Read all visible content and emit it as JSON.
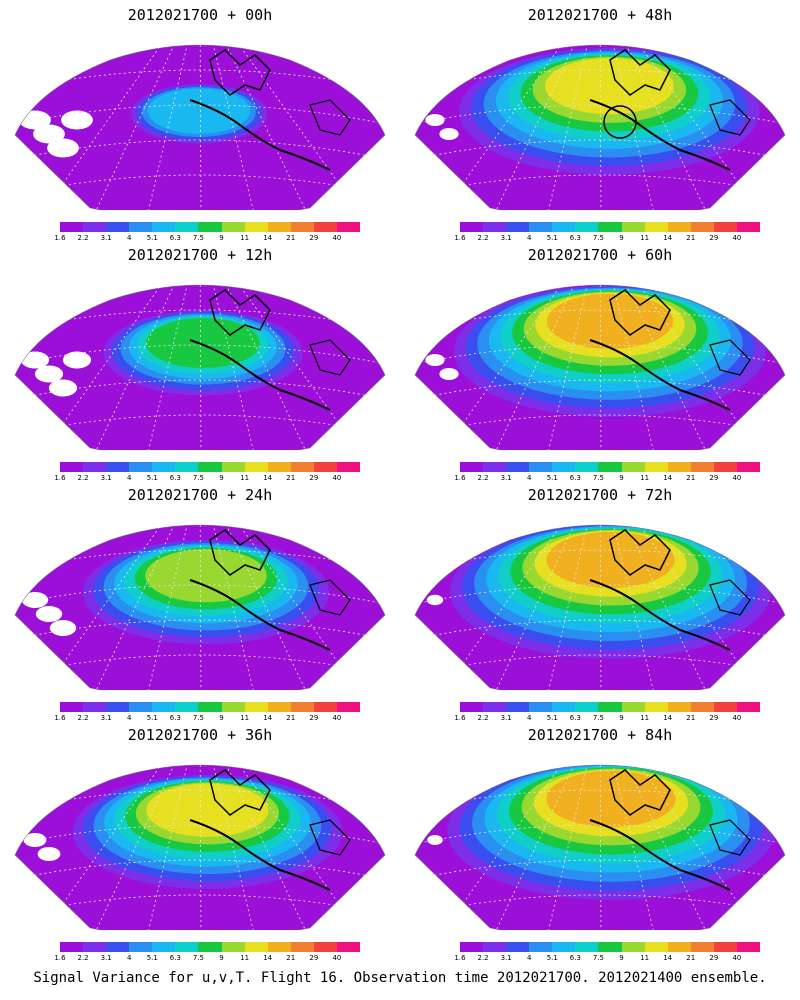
{
  "panels": [
    {
      "title": "2012021700 + 00h",
      "level": 0.2,
      "blank": 0.55,
      "label_id": "00h"
    },
    {
      "title": "2012021700 + 12h",
      "level": 0.4,
      "blank": 0.45,
      "label_id": "12h"
    },
    {
      "title": "2012021700 + 24h",
      "level": 0.55,
      "blank": 0.4,
      "label_id": "24h"
    },
    {
      "title": "2012021700 + 36h",
      "level": 0.62,
      "blank": 0.3,
      "label_id": "36h"
    },
    {
      "title": "2012021700 + 48h",
      "level": 0.72,
      "blank": 0.2,
      "label_id": "48h",
      "circle": true
    },
    {
      "title": "2012021700 + 60h",
      "level": 0.75,
      "blank": 0.2,
      "label_id": "60h"
    },
    {
      "title": "2012021700 + 72h",
      "level": 0.78,
      "blank": 0.12,
      "label_id": "72h"
    },
    {
      "title": "2012021700 + 84h",
      "level": 0.8,
      "blank": 0.1,
      "label_id": "84h"
    }
  ],
  "colorbar": {
    "labels": [
      "1.6",
      "2.2",
      "3.1",
      "4",
      "5.1",
      "6.3",
      "7.5",
      "9",
      "11",
      "14",
      "21",
      "29",
      "40"
    ],
    "colors": [
      "#9b0fd8",
      "#7c2ee8",
      "#3a4ef0",
      "#2a8ff0",
      "#1ab8f0",
      "#10cfc8",
      "#18c840",
      "#98d830",
      "#e6e020",
      "#f0b020",
      "#f08030",
      "#f04040",
      "#f01080"
    ]
  },
  "caption": "Signal Variance for u,v,T. Flight 16. Observation time 2012021700. 2012021400 ensemble."
}
